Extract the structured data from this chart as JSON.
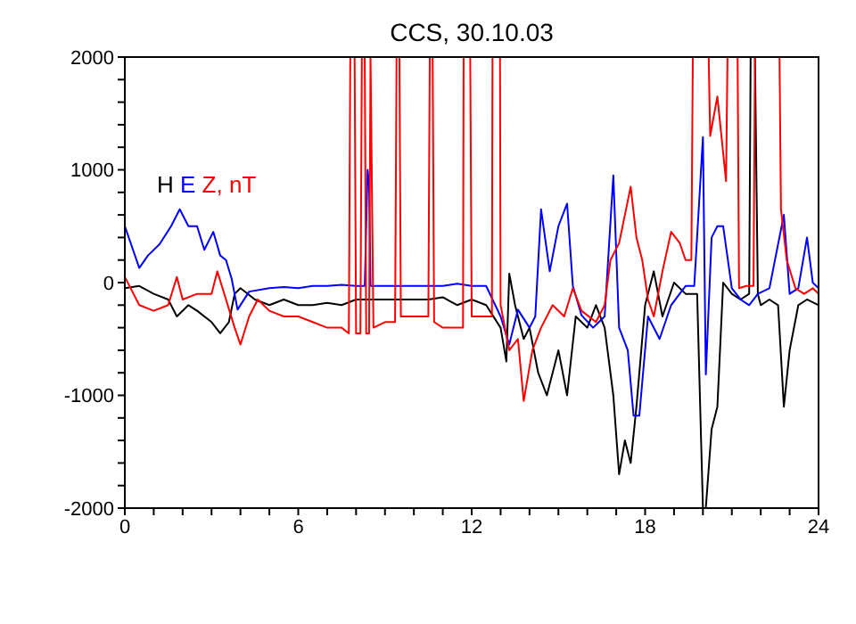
{
  "chart_data": {
    "type": "line",
    "title": "CCS, 30.10.03",
    "xlim": [
      0,
      24
    ],
    "xticks": [
      0,
      {
        "value": 1,
        "label": null
      },
      {
        "value": 2,
        "label": null
      },
      {
        "value": 3,
        "label": null
      },
      {
        "value": 4,
        "label": null
      },
      {
        "value": 5,
        "label": null
      },
      6,
      {
        "value": 7,
        "label": null
      },
      {
        "value": 8,
        "label": null
      },
      {
        "value": 9,
        "label": null
      },
      {
        "value": 10,
        "label": null
      },
      {
        "value": 11,
        "label": null
      },
      12,
      {
        "value": 13,
        "label": null
      },
      {
        "value": 14,
        "label": null
      },
      {
        "value": 15,
        "label": null
      },
      {
        "value": 16,
        "label": null
      },
      {
        "value": 17,
        "label": null
      },
      18,
      {
        "value": 19,
        "label": null
      },
      {
        "value": 20,
        "label": null
      },
      {
        "value": 21,
        "label": null
      },
      {
        "value": 22,
        "label": null
      },
      {
        "value": 23,
        "label": null
      },
      24
    ],
    "ylim": [
      -2000,
      2000
    ],
    "yticks": [
      -2000,
      {
        "value": -1800,
        "label": null
      },
      {
        "value": -1600,
        "label": null
      },
      {
        "value": -1400,
        "label": null
      },
      {
        "value": -1200,
        "label": null
      },
      -1000,
      {
        "value": -800,
        "label": null
      },
      {
        "value": -600,
        "label": null
      },
      {
        "value": -400,
        "label": null
      },
      {
        "value": -200,
        "label": null
      },
      0,
      {
        "value": 200,
        "label": null
      },
      {
        "value": 400,
        "label": null
      },
      {
        "value": 600,
        "label": null
      },
      {
        "value": 800,
        "label": null
      },
      1000,
      {
        "value": 1200,
        "label": null
      },
      {
        "value": 1400,
        "label": null
      },
      {
        "value": 1600,
        "label": null
      },
      {
        "value": 1800,
        "label": null
      },
      2000
    ],
    "legend": "top left",
    "marker": "none",
    "line_style": "solid",
    "series": [
      {
        "name": "H",
        "color": "#000000",
        "x": [
          0,
          0.5,
          1,
          1.5,
          1.8,
          2.2,
          2.5,
          3,
          3.3,
          3.6,
          3.8,
          4,
          4.5,
          5,
          5.5,
          6,
          6.5,
          7,
          7.5,
          8,
          8.5,
          9,
          9.5,
          10,
          10.5,
          11,
          11.5,
          12,
          12.5,
          13,
          13.2,
          13.3,
          13.5,
          13.8,
          14,
          14.3,
          14.6,
          15,
          15.3,
          15.6,
          16,
          16.3,
          16.6,
          16.9,
          17.1,
          17.3,
          17.5,
          17.7,
          18,
          18.3,
          18.6,
          19,
          19.4,
          19.8,
          20,
          20.1,
          20.3,
          20.5,
          20.7,
          21,
          21.3,
          21.6,
          21.65,
          21.8,
          21.9,
          22,
          22.3,
          22.6,
          22.8,
          23,
          23.3,
          23.6,
          24
        ],
        "values": [
          -50,
          -30,
          -100,
          -150,
          -300,
          -200,
          -250,
          -350,
          -450,
          -350,
          -100,
          -50,
          -150,
          -200,
          -150,
          -200,
          -200,
          -180,
          -200,
          -150,
          -150,
          -150,
          -150,
          -150,
          -150,
          -130,
          -200,
          -150,
          -200,
          -400,
          -700,
          80,
          -200,
          -500,
          -400,
          -800,
          -1000,
          -600,
          -1000,
          -300,
          -400,
          -200,
          -400,
          -1000,
          -1700,
          -1400,
          -1600,
          -1100,
          -200,
          100,
          -300,
          0,
          -100,
          -100,
          -2000,
          -2000,
          -1300,
          -1100,
          0,
          -100,
          -150,
          -100,
          2000,
          2000,
          -100,
          -200,
          -150,
          -200,
          -1100,
          -600,
          -200,
          -150,
          -200
        ]
      },
      {
        "name": "E",
        "color": "#0000ff",
        "x": [
          0,
          0.5,
          0.8,
          1.2,
          1.6,
          1.9,
          2.2,
          2.5,
          2.75,
          3.06,
          3.3,
          3.5,
          3.7,
          3.9,
          4.3,
          5,
          5.5,
          6,
          6.5,
          7,
          7.5,
          8,
          8.3,
          8.4,
          8.45,
          8.5,
          9,
          9.5,
          10,
          10.6,
          11,
          11.5,
          12,
          12.5,
          13,
          13.3,
          13.6,
          14,
          14.2,
          14.4,
          14.7,
          15,
          15.3,
          15.5,
          15.8,
          16.2,
          16.6,
          16.9,
          17.1,
          17.4,
          17.6,
          17.8,
          18.1,
          18.5,
          18.9,
          19.4,
          19.7,
          20,
          20.1,
          20.3,
          20.5,
          20.7,
          21,
          21.3,
          21.6,
          21.9,
          22.3,
          22.8,
          23,
          23.3,
          23.6,
          23.8,
          24
        ],
        "values": [
          500,
          130,
          240,
          340,
          500,
          650,
          500,
          500,
          290,
          450,
          240,
          200,
          30,
          -240,
          -80,
          -50,
          -40,
          -50,
          -30,
          -30,
          -20,
          -30,
          -30,
          1000,
          870,
          -30,
          -30,
          -30,
          -30,
          -30,
          -30,
          -10,
          -30,
          -30,
          -300,
          -550,
          -240,
          -400,
          -300,
          650,
          100,
          500,
          700,
          -30,
          -290,
          -400,
          -300,
          950,
          -400,
          -600,
          -1180,
          -1180,
          -300,
          -500,
          -200,
          -30,
          -30,
          1290,
          -815,
          400,
          500,
          500,
          -50,
          -150,
          -200,
          -100,
          -50,
          600,
          -100,
          -50,
          400,
          0,
          -50
        ]
      },
      {
        "name": "Z, nT",
        "color": "#ff0000",
        "x": [
          0,
          0.5,
          1,
          1.5,
          1.8,
          2,
          2.5,
          3,
          3.2,
          3.5,
          3.8,
          4,
          4.3,
          4.6,
          5,
          5.5,
          6,
          6.5,
          7,
          7.5,
          7.75,
          7.8,
          7.95,
          8.0,
          8.15,
          8.2,
          8.3,
          8.35,
          8.45,
          8.5,
          8.6,
          9,
          9.35,
          9.4,
          9.5,
          9.55,
          10,
          10.5,
          10.55,
          10.65,
          10.7,
          11,
          11.5,
          11.7,
          11.72,
          11.95,
          12,
          12.5,
          12.7,
          12.72,
          12.98,
          13,
          13.3,
          13.6,
          13.8,
          14.1,
          14.4,
          14.8,
          15.2,
          15.5,
          15.8,
          16.3,
          16.6,
          16.8,
          17.1,
          17.3,
          17.5,
          17.7,
          17.9,
          18.1,
          18.3,
          18.6,
          18.9,
          19.2,
          19.4,
          19.6,
          19.65,
          20.2,
          20.25,
          20.5,
          20.8,
          20.85,
          21.2,
          21.25,
          21.5,
          21.75,
          21.8,
          22.65,
          22.7,
          22.9,
          23.2,
          23.5,
          23.8,
          24
        ],
        "values": [
          50,
          -200,
          -250,
          -200,
          50,
          -150,
          -100,
          -100,
          100,
          -150,
          -400,
          -550,
          -300,
          -150,
          -250,
          -300,
          -300,
          -350,
          -400,
          -400,
          -450,
          2000,
          2000,
          -450,
          -450,
          2000,
          2000,
          -450,
          -450,
          2000,
          -400,
          -350,
          -350,
          2000,
          2000,
          -300,
          -300,
          -300,
          2000,
          2000,
          -350,
          -400,
          -400,
          -400,
          2000,
          2000,
          -300,
          -300,
          -300,
          2000,
          2000,
          -200,
          -600,
          -500,
          -1050,
          -600,
          -400,
          -200,
          -300,
          -50,
          -250,
          -350,
          -200,
          200,
          350,
          600,
          850,
          400,
          200,
          -150,
          -300,
          100,
          450,
          350,
          200,
          200,
          2000,
          2000,
          1300,
          1650,
          900,
          2000,
          2000,
          -50,
          -30,
          -30,
          2000,
          2000,
          650,
          200,
          -50,
          -100,
          -50,
          -100
        ]
      }
    ]
  }
}
